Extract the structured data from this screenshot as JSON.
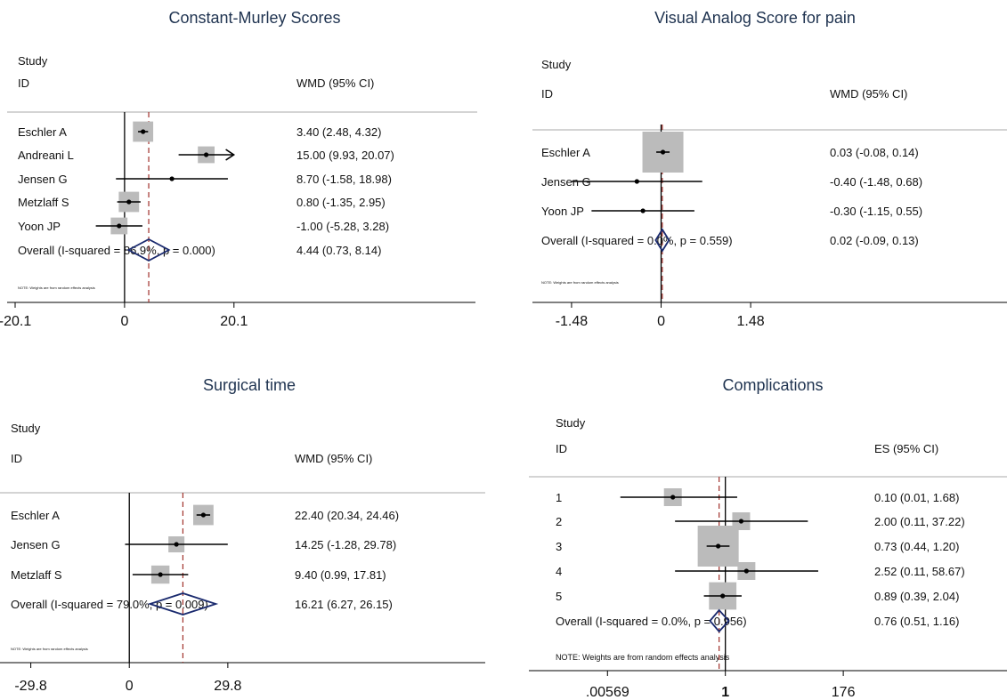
{
  "chart_data": [
    {
      "type": "forest",
      "title": "Constant-Murley Scores",
      "study_header": "Study",
      "id_header": "ID",
      "effect_header": "WMD (95% CI)",
      "scale": "linear",
      "xlim": [
        -20.1,
        36.0
      ],
      "ticks": [
        "-20.1",
        "0",
        "20.1"
      ],
      "tick_values": [
        -20.1,
        0,
        20.1
      ],
      "ref_value": 0,
      "overall_value": 4.44,
      "studies": [
        {
          "label": "Eschler A",
          "est": 3.4,
          "lo": 2.48,
          "hi": 4.32,
          "ci_text": "3.40 (2.48, 4.32)",
          "weight": 0.42
        },
        {
          "label": "Andreani L",
          "est": 15.0,
          "lo": 9.93,
          "hi": 20.07,
          "ci_text": "15.00 (9.93, 20.07)",
          "weight": 0.32,
          "arrow_right": true
        },
        {
          "label": "Jensen G",
          "est": 8.7,
          "lo": -1.58,
          "hi": 18.98,
          "ci_text": "8.70 (-1.58, 18.98)",
          "weight": 0.0
        },
        {
          "label": "Metzlaff S",
          "est": 0.8,
          "lo": -1.35,
          "hi": 2.95,
          "ci_text": "0.80 (-1.35, 2.95)",
          "weight": 0.42
        },
        {
          "label": "Yoon JP",
          "est": -1.0,
          "lo": -5.28,
          "hi": 3.28,
          "ci_text": "-1.00 (-5.28, 3.28)",
          "weight": 0.32
        }
      ],
      "overall": {
        "label": "Overall  (I-squared = 86.9%, p = 0.000)",
        "est": 4.44,
        "lo": 0.73,
        "hi": 8.14,
        "ci_text": "4.44 (0.73, 8.14)"
      },
      "note": "NOTE: Weights are from random effects analysis"
    },
    {
      "type": "forest",
      "title": "Visual Analog Score for pain",
      "study_header": "Study",
      "id_header": "ID",
      "effect_header": "WMD (95% CI)",
      "scale": "linear",
      "xlim": [
        -1.95,
        2.7
      ],
      "ticks": [
        "-1.48",
        "0",
        "1.48"
      ],
      "tick_values": [
        -1.48,
        0,
        1.48
      ],
      "ref_value": 0,
      "overall_value": 0.02,
      "studies": [
        {
          "label": "Eschler A",
          "est": 0.03,
          "lo": -0.08,
          "hi": 0.14,
          "ci_text": "0.03 (-0.08, 0.14)",
          "weight": 1.0
        },
        {
          "label": "Jensen G",
          "est": -0.4,
          "lo": -1.48,
          "hi": 0.68,
          "ci_text": "-0.40 (-1.48, 0.68)",
          "weight": 0.0
        },
        {
          "label": "Yoon JP",
          "est": -0.3,
          "lo": -1.15,
          "hi": 0.55,
          "ci_text": "-0.30 (-1.15, 0.55)",
          "weight": 0.0
        }
      ],
      "overall": {
        "label": "Overall  (I-squared = 0.0%, p = 0.559)",
        "est": 0.02,
        "lo": -0.09,
        "hi": 0.13,
        "ci_text": "0.02 (-0.09, 0.13)"
      },
      "note": "NOTE: Weights are from random effects analysis"
    },
    {
      "type": "forest",
      "title": "Surgical time",
      "study_header": "Study",
      "id_header": "ID",
      "effect_header": "WMD (95% CI)",
      "scale": "linear",
      "xlim": [
        -37.5,
        60.0
      ],
      "ticks": [
        "-29.8",
        "0",
        "29.8"
      ],
      "tick_values": [
        -29.8,
        0,
        29.8
      ],
      "ref_value": 0,
      "overall_value": 16.21,
      "studies": [
        {
          "label": "Eschler A",
          "est": 22.4,
          "lo": 20.34,
          "hi": 24.46,
          "ci_text": "22.40 (20.34, 24.46)",
          "weight": 0.42
        },
        {
          "label": "Jensen G",
          "est": 14.25,
          "lo": -1.28,
          "hi": 29.78,
          "ci_text": "14.25 (-1.28, 29.78)",
          "weight": 0.3
        },
        {
          "label": "Metzlaff S",
          "est": 9.4,
          "lo": 0.99,
          "hi": 17.81,
          "ci_text": "9.40 (0.99, 17.81)",
          "weight": 0.36
        }
      ],
      "overall": {
        "label": "Overall  (I-squared = 79.0%, p = 0.009)",
        "est": 16.21,
        "lo": 6.27,
        "hi": 26.15,
        "ci_text": "16.21 (6.27, 26.15)"
      },
      "note": "NOTE: Weights are from random effects analysis"
    },
    {
      "type": "forest",
      "title": "Complications",
      "study_header": "Study",
      "id_header": "ID",
      "effect_header": "ES (95% CI)",
      "scale": "log",
      "xlim": [
        0.0005,
        1500
      ],
      "ticks": [
        ".00569",
        "1",
        "176"
      ],
      "tick_values": [
        0.00569,
        1,
        176
      ],
      "ref_value": 1,
      "overall_value": 0.76,
      "studies": [
        {
          "label": "1",
          "est": 0.1,
          "lo": 0.01,
          "hi": 1.68,
          "ci_text": "0.10 (0.01, 1.68)",
          "weight": 0.35
        },
        {
          "label": "2",
          "est": 2.0,
          "lo": 0.11,
          "hi": 37.22,
          "ci_text": "2.00 (0.11, 37.22)",
          "weight": 0.35
        },
        {
          "label": "3",
          "est": 0.73,
          "lo": 0.44,
          "hi": 1.2,
          "ci_text": "0.73 (0.44, 1.20)",
          "weight": 1.0
        },
        {
          "label": "4",
          "est": 2.52,
          "lo": 0.11,
          "hi": 58.67,
          "ci_text": "2.52 (0.11, 58.67)",
          "weight": 0.35
        },
        {
          "label": "5",
          "est": 0.89,
          "lo": 0.39,
          "hi": 2.04,
          "ci_text": "0.89 (0.39, 2.04)",
          "weight": 0.62
        }
      ],
      "overall": {
        "label": "Overall  (I-squared = 0.0%, p = 0.956)",
        "est": 0.76,
        "lo": 0.51,
        "hi": 1.16,
        "ci_text": "0.76 (0.51, 1.16)"
      },
      "note": "NOTE: Weights are from random effects analysis"
    }
  ]
}
